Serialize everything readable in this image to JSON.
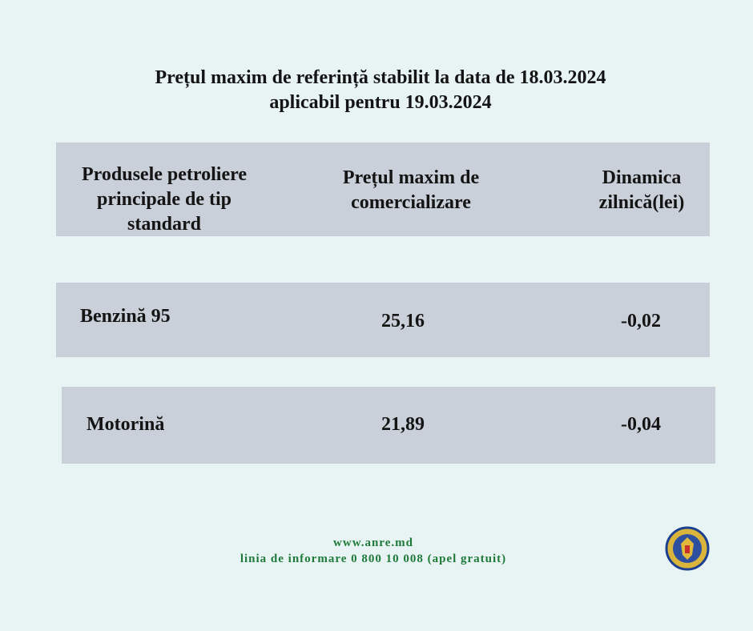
{
  "title": [
    "Prețul maxim de referință stabilit la data de 18.03.2024",
    "aplicabil pentru 19.03.2024"
  ],
  "table": {
    "header": [
      [
        "Produsele petroliere",
        "principale de tip",
        "standard"
      ],
      [
        "Prețul maxim de",
        "comercializare"
      ],
      [
        "Dinamica",
        "zilnică(lei)"
      ]
    ],
    "rows": [
      [
        "Benzină 95",
        "25,16",
        "-0,02"
      ],
      [
        "Motorină",
        "21,89",
        "-0,04"
      ]
    ]
  },
  "footer": {
    "website": "www.anre.md",
    "hotline": "linia de informare 0 800 10 008 (apel gratuit)"
  }
}
